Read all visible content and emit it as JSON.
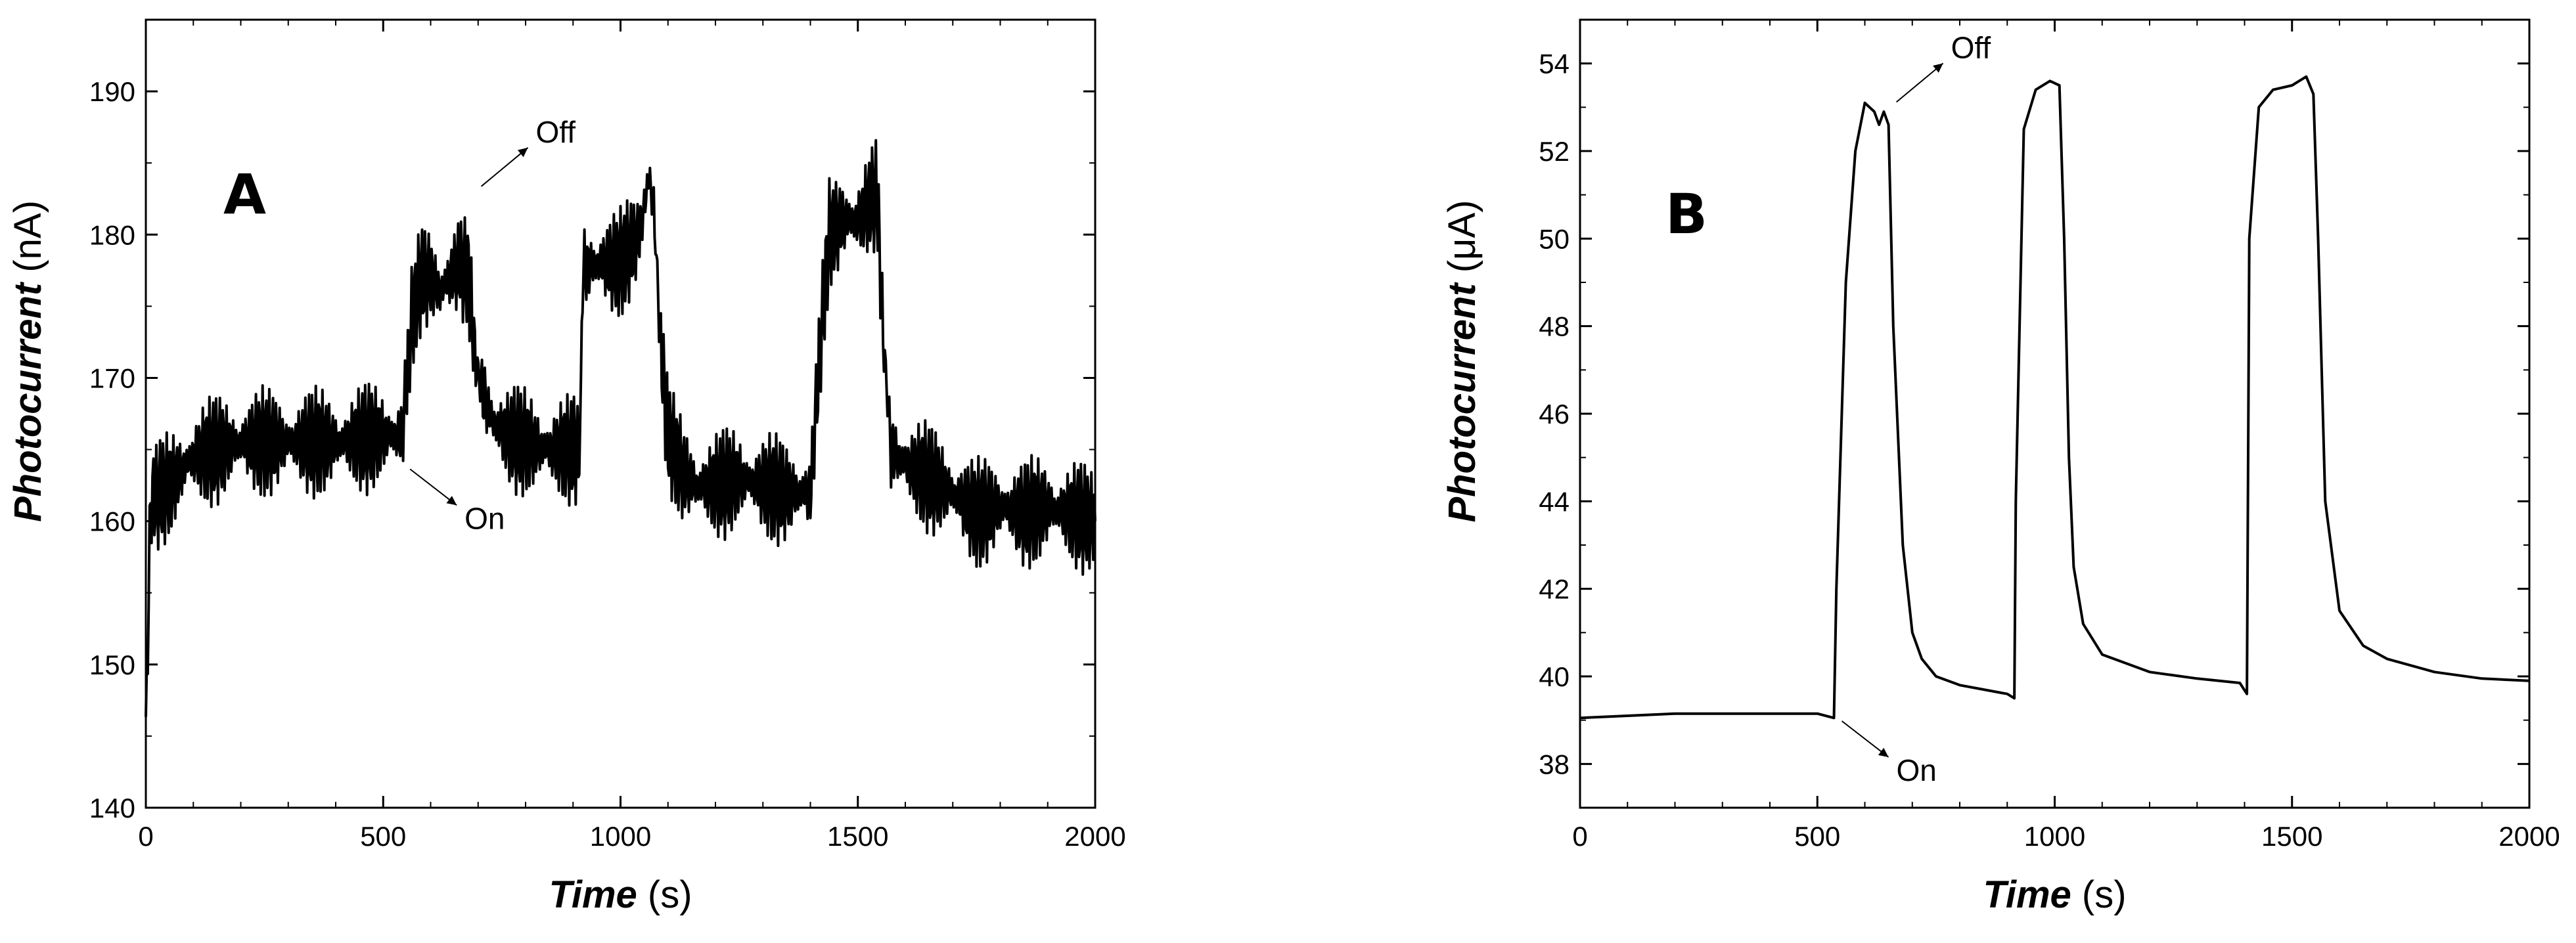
{
  "chart_data": [
    {
      "type": "line",
      "panel_label": "A",
      "xlabel_main": "Time",
      "xlabel_unit": " (s)",
      "ylabel_main": "Photocurrent",
      "ylabel_unit": " (nA)",
      "xlim": [
        0,
        2000
      ],
      "ylim": [
        140,
        195
      ],
      "xticks": [
        0,
        500,
        1000,
        1500,
        2000
      ],
      "yticks": [
        140,
        150,
        160,
        170,
        180,
        190
      ],
      "annotations": [
        {
          "text": "Off",
          "x": 690,
          "y": 183
        },
        {
          "text": "On",
          "x": 540,
          "y": 164
        }
      ],
      "noise_amplitude": 2.5,
      "series": [
        {
          "x": [
            0,
            10,
            50,
            100,
            200,
            300,
            400,
            500,
            540,
            560,
            580,
            600,
            620,
            640,
            660,
            680,
            695,
            710,
            730,
            760,
            800,
            850,
            900,
            915,
            920,
            950,
            1000,
            1040,
            1060,
            1070,
            1085,
            1100,
            1130,
            1160,
            1200,
            1250,
            1300,
            1350,
            1400,
            1420,
            1440,
            1470,
            1500,
            1520,
            1540,
            1555,
            1570,
            1600,
            1650,
            1700,
            1750,
            1800,
            1850,
            1900,
            1950,
            2000
          ],
          "y": [
            145,
            161.5,
            162.5,
            164.5,
            165.5,
            165.5,
            165.5,
            166,
            166,
            174,
            177,
            177,
            176,
            177,
            178,
            177,
            171,
            169,
            167,
            166,
            165.5,
            165,
            165,
            165,
            177.5,
            178,
            178,
            180,
            184,
            182,
            172,
            166,
            163.5,
            162.5,
            162.5,
            163,
            162.5,
            162,
            162,
            172,
            180,
            181,
            181,
            182,
            183,
            172,
            165,
            164,
            163,
            162,
            160.5,
            161,
            160.5,
            161,
            160.5,
            160
          ]
        }
      ]
    },
    {
      "type": "line",
      "panel_label": "B",
      "xlabel_main": "Time",
      "xlabel_unit": " (s)",
      "ylabel_main": "Photocurrent",
      "ylabel_unit": " (μA)",
      "xlim": [
        0,
        2000
      ],
      "ylim": [
        37,
        55
      ],
      "xticks": [
        0,
        500,
        1000,
        1500,
        2000
      ],
      "yticks": [
        38,
        40,
        42,
        44,
        46,
        48,
        50,
        52,
        54
      ],
      "annotations": [
        {
          "text": "Off",
          "x": 650,
          "y": 53
        },
        {
          "text": "On",
          "x": 535,
          "y": 39.1
        }
      ],
      "noise_amplitude": 0,
      "series": [
        {
          "x": [
            0,
            100,
            200,
            300,
            400,
            500,
            535,
            540,
            560,
            580,
            600,
            620,
            630,
            640,
            650,
            660,
            680,
            700,
            720,
            750,
            800,
            850,
            900,
            915,
            918,
            935,
            960,
            990,
            1010,
            1020,
            1030,
            1040,
            1060,
            1100,
            1150,
            1200,
            1300,
            1390,
            1405,
            1410,
            1430,
            1460,
            1500,
            1530,
            1545,
            1555,
            1570,
            1600,
            1650,
            1700,
            1800,
            1900,
            2000
          ],
          "y": [
            39.05,
            39.1,
            39.15,
            39.15,
            39.15,
            39.15,
            39.05,
            42,
            49,
            52,
            53.1,
            52.9,
            52.6,
            52.9,
            52.6,
            48,
            43,
            41,
            40.4,
            40.0,
            39.8,
            39.7,
            39.6,
            39.5,
            44,
            52.5,
            53.4,
            53.6,
            53.5,
            50,
            45,
            42.5,
            41.2,
            40.5,
            40.3,
            40.1,
            39.95,
            39.85,
            39.6,
            50,
            53.0,
            53.4,
            53.5,
            53.7,
            53.3,
            50,
            44,
            41.5,
            40.7,
            40.4,
            40.1,
            39.95,
            39.9
          ]
        }
      ]
    }
  ]
}
